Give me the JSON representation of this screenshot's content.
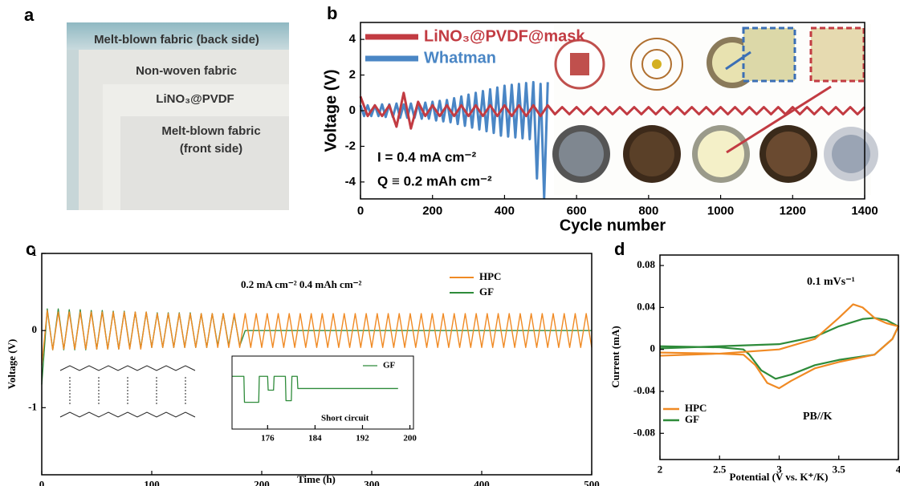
{
  "photo": {
    "label": "a",
    "layers": [
      "Melt-blown fabric (back side)",
      "Non-woven fabric",
      "LiNO₃@PVDF",
      [
        "Melt-blown fabric",
        "(front side)"
      ]
    ]
  },
  "chart_data": [
    {
      "type": "line",
      "label": "b",
      "xlabel": "Cycle number",
      "ylabel": "Voltage (V)",
      "annotations": [
        "I = 0.4 mA cm⁻²",
        "Q ≡ 0.2 mAh cm⁻²"
      ],
      "xlim": [
        0,
        1400
      ],
      "xticks": [
        0,
        200,
        400,
        600,
        800,
        1000,
        1200,
        1400
      ],
      "ylim": [
        -4.95,
        4.95
      ],
      "yticks": [
        -4,
        -2,
        0,
        2,
        4
      ],
      "series": [
        {
          "name": "LiNO₃@PVDF@mask",
          "color": "#c23b42",
          "x": [
            0,
            20,
            40,
            60,
            80,
            100,
            120,
            140,
            160,
            180,
            200,
            220,
            240,
            260,
            280,
            300,
            320,
            340,
            360,
            380,
            400,
            420,
            440,
            460,
            480,
            500,
            520,
            540,
            560,
            580,
            600,
            620,
            640,
            660,
            680,
            700,
            720,
            740,
            760,
            780,
            800,
            820,
            840,
            860,
            880,
            900,
            920,
            940,
            960,
            980,
            1000,
            1020,
            1040,
            1060,
            1080,
            1100,
            1120,
            1140,
            1160,
            1180,
            1200,
            1220,
            1240,
            1260,
            1280,
            1300,
            1320,
            1340,
            1360,
            1380,
            1400
          ],
          "values": [
            0.8,
            -0.3,
            0.3,
            -0.3,
            0.3,
            -0.9,
            1.0,
            -1.0,
            0.5,
            -0.3,
            0.3,
            -0.3,
            0.3,
            -0.3,
            0.3,
            -0.3,
            0.3,
            -0.3,
            0.3,
            -0.3,
            0.3,
            -0.3,
            0.3,
            -0.3,
            0.3,
            -0.3,
            0.3,
            -0.2,
            0.2,
            -0.2,
            0.2,
            -0.2,
            0.2,
            -0.2,
            0.2,
            -0.2,
            0.2,
            -0.2,
            0.2,
            -0.2,
            0.2,
            -0.2,
            0.2,
            -0.2,
            0.2,
            -0.2,
            0.2,
            -0.2,
            0.2,
            -0.2,
            0.2,
            -0.2,
            0.2,
            -0.2,
            0.2,
            -0.2,
            0.2,
            -0.2,
            0.2,
            -0.2,
            0.2,
            -0.2,
            0.2,
            -0.2,
            0.2,
            -0.2,
            0.2,
            -0.2,
            0.2,
            -0.2,
            0.2
          ]
        },
        {
          "name": "Whatman",
          "color": "#4a86c5",
          "x": [
            0,
            10,
            20,
            30,
            40,
            50,
            60,
            70,
            80,
            90,
            100,
            110,
            120,
            130,
            140,
            150,
            160,
            170,
            180,
            190,
            200,
            210,
            220,
            230,
            240,
            250,
            260,
            270,
            280,
            290,
            300,
            310,
            320,
            330,
            340,
            350,
            360,
            370,
            380,
            390,
            400,
            410,
            420,
            430,
            440,
            450,
            460,
            470,
            480,
            490,
            500,
            510,
            520
          ],
          "values": [
            0.3,
            -0.3,
            0.3,
            -0.3,
            0.3,
            -0.3,
            0.35,
            -0.35,
            0.35,
            -0.35,
            0.4,
            -0.4,
            0.35,
            -0.4,
            0.4,
            -0.4,
            0.4,
            -0.45,
            0.45,
            -0.45,
            0.5,
            -0.55,
            0.55,
            -0.6,
            0.6,
            -0.65,
            0.7,
            -0.75,
            0.8,
            -0.85,
            0.9,
            -0.95,
            1.0,
            -1.05,
            1.1,
            -1.15,
            1.2,
            -1.25,
            1.3,
            -1.4,
            1.4,
            -1.45,
            1.45,
            -1.5,
            1.5,
            -1.55,
            1.55,
            -1.6,
            1.6,
            -3.8,
            1.5,
            -4.9,
            1.6
          ]
        }
      ]
    },
    {
      "type": "line",
      "label": "c",
      "xlabel": "Time (h)",
      "ylabel": "Voltage (V)",
      "annotations": [
        "0.2 mA cm⁻²  0.4 mAh cm⁻²"
      ],
      "xlim": [
        0,
        500
      ],
      "xticks": [
        0,
        100,
        200,
        300,
        400,
        500
      ],
      "ylim": [
        -1.87,
        1
      ],
      "yticks": [
        -1,
        0,
        1
      ],
      "series": [
        {
          "name": "HPC",
          "color": "#f08a24",
          "x": [
            0,
            5,
            10,
            15,
            20,
            25,
            30,
            35,
            40,
            45,
            50,
            55,
            60,
            65,
            70,
            75,
            80,
            85,
            90,
            95,
            100,
            105,
            110,
            115,
            120,
            125,
            130,
            135,
            140,
            145,
            150,
            155,
            160,
            165,
            170,
            175,
            180,
            185,
            190,
            195,
            200,
            205,
            210,
            215,
            220,
            225,
            230,
            235,
            240,
            245,
            250,
            255,
            260,
            265,
            270,
            275,
            280,
            285,
            290,
            295,
            300,
            305,
            310,
            315,
            320,
            325,
            330,
            335,
            340,
            345,
            350,
            355,
            360,
            365,
            370,
            375,
            380,
            385,
            390,
            395,
            400,
            405,
            410,
            415,
            420,
            425,
            430,
            435,
            440,
            445,
            450,
            455,
            460,
            465,
            470,
            475,
            480,
            485,
            490,
            495,
            500
          ],
          "values": [
            -0.45,
            0.26,
            -0.25,
            0.24,
            -0.24,
            0.24,
            -0.24,
            0.24,
            -0.24,
            0.24,
            -0.24,
            0.24,
            -0.24,
            0.24,
            -0.24,
            0.24,
            -0.24,
            0.24,
            -0.24,
            0.24,
            -0.22,
            0.22,
            -0.22,
            0.22,
            -0.22,
            0.22,
            -0.22,
            0.22,
            -0.22,
            0.22,
            -0.22,
            0.22,
            -0.22,
            0.22,
            -0.22,
            0.22,
            -0.22,
            0.22,
            -0.22,
            0.22,
            -0.22,
            0.22,
            -0.22,
            0.22,
            -0.22,
            0.22,
            -0.22,
            0.22,
            -0.22,
            0.22,
            -0.22,
            0.22,
            -0.22,
            0.22,
            -0.22,
            0.22,
            -0.22,
            0.22,
            -0.22,
            0.22,
            -0.22,
            0.22,
            -0.22,
            0.22,
            -0.22,
            0.22,
            -0.22,
            0.22,
            -0.22,
            0.22,
            -0.22,
            0.22,
            -0.22,
            0.22,
            -0.22,
            0.22,
            -0.22,
            0.22,
            -0.22,
            0.22,
            -0.22,
            0.22,
            -0.22,
            0.22,
            -0.22,
            0.22,
            -0.22,
            0.22,
            -0.22,
            0.22,
            -0.22,
            0.22,
            -0.22,
            0.22,
            -0.22,
            0.22,
            -0.22,
            0.22,
            -0.22,
            0.22,
            -0.22
          ]
        },
        {
          "name": "GF",
          "color": "#2e8b3a",
          "x": [
            0,
            5,
            10,
            15,
            20,
            25,
            30,
            35,
            40,
            45,
            50,
            55,
            60,
            65,
            70,
            75,
            80,
            85,
            90,
            95,
            100,
            105,
            110,
            115,
            120,
            125,
            130,
            135,
            140,
            145,
            150,
            155,
            160,
            165,
            170,
            175,
            180,
            185,
            500
          ],
          "values": [
            -0.7,
            0.28,
            -0.25,
            0.28,
            -0.25,
            0.27,
            -0.25,
            0.27,
            -0.25,
            0.26,
            -0.24,
            0.26,
            -0.24,
            0.25,
            -0.24,
            0.25,
            -0.23,
            0.24,
            -0.23,
            0.24,
            -0.22,
            0.23,
            -0.22,
            0.23,
            -0.22,
            0.23,
            -0.22,
            0.23,
            -0.22,
            0.22,
            -0.22,
            0.22,
            -0.2,
            0.22,
            -0.2,
            0.2,
            -0.2,
            0,
            0
          ]
        }
      ]
    },
    {
      "type": "line",
      "annotations": [
        "Short circuit"
      ],
      "xlim": [
        170,
        200.6
      ],
      "xticks": [
        176,
        184,
        192,
        200
      ],
      "ylim": [
        -0.5,
        0.4
      ],
      "series": [
        {
          "name": "GF",
          "color": "#2e8b3a",
          "x": [
            170,
            172,
            172.1,
            174.5,
            174.6,
            176,
            176.1,
            177,
            177.1,
            179,
            179.1,
            180,
            180.1,
            181,
            181.1,
            198
          ],
          "values": [
            0.15,
            0.15,
            -0.17,
            -0.17,
            0.15,
            0.15,
            -0.02,
            -0.02,
            0.15,
            0.15,
            -0.15,
            -0.15,
            0.15,
            0.15,
            0,
            0
          ]
        }
      ]
    },
    {
      "type": "line",
      "label": "d",
      "xlabel": "Potential (V vs. K⁺/K)",
      "ylabel": "Current (mA)",
      "annotations": [
        "0.1 mVs⁻¹",
        "PB//K"
      ],
      "xlim": [
        2,
        4
      ],
      "xticks": [
        2,
        2.5,
        3,
        3.5,
        4
      ],
      "ylim": [
        -0.105,
        0.09
      ],
      "yticks": [
        -0.08,
        -0.04,
        0,
        0.04,
        0.08
      ],
      "series": [
        {
          "name": "HPC",
          "color": "#f08a24",
          "x": [
            2,
            2.5,
            3,
            3.3,
            3.5,
            3.62,
            3.7,
            3.8,
            3.9,
            4,
            3.95,
            3.8,
            3.5,
            3.3,
            3.1,
            3,
            2.9,
            2.8,
            2.7,
            2.5,
            2
          ],
          "values": [
            -0.006,
            -0.004,
            0,
            0.01,
            0.03,
            0.043,
            0.04,
            0.03,
            0.025,
            0.022,
            0.01,
            -0.005,
            -0.012,
            -0.018,
            -0.03,
            -0.037,
            -0.032,
            -0.015,
            -0.005,
            -0.004,
            -0.003
          ]
        },
        {
          "name": "GF",
          "color": "#2e8b3a",
          "x": [
            2,
            2.5,
            3,
            3.3,
            3.5,
            3.7,
            3.8,
            3.9,
            4,
            3.95,
            3.8,
            3.5,
            3.3,
            3.1,
            2.97,
            2.85,
            2.75,
            2.7,
            2.5,
            2
          ],
          "values": [
            0.001,
            0.003,
            0.005,
            0.012,
            0.022,
            0.029,
            0.03,
            0.028,
            0.022,
            0.01,
            -0.005,
            -0.01,
            -0.015,
            -0.024,
            -0.028,
            -0.02,
            -0.005,
            0,
            0.002,
            0.003
          ]
        }
      ]
    }
  ]
}
